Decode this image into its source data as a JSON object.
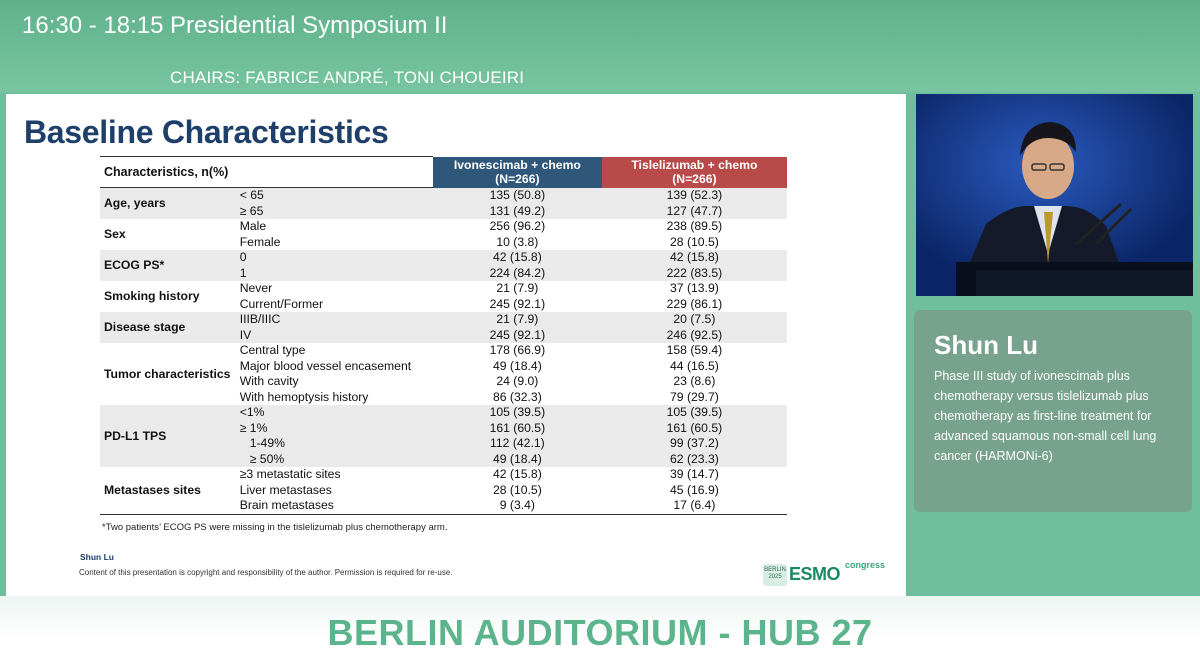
{
  "header": {
    "time": "16:30 - 18:15",
    "title": "Presidential Symposium II",
    "chairs": "CHAIRS: FABRICE ANDRÉ, TONI CHOUEIRI"
  },
  "slide": {
    "title": "Baseline Characteristics",
    "table": {
      "headers": {
        "characteristics": "Characteristics, n(%)",
        "arm1": "Ivonescimab + chemo",
        "arm1_n": "(N=266)",
        "arm2": "Tislelizumab + chemo",
        "arm2_n": "(N=266)"
      },
      "rows": [
        {
          "cat": "Age, years",
          "sub": "< 65",
          "a": "135 (50.8)",
          "b": "139 (52.3)"
        },
        {
          "sub": "≥ 65",
          "a": "131 (49.2)",
          "b": "127 (47.7)"
        },
        {
          "cat": "Sex",
          "sub": "Male",
          "a": "256 (96.2)",
          "b": "238 (89.5)"
        },
        {
          "sub": "Female",
          "a": "10 (3.8)",
          "b": "28 (10.5)"
        },
        {
          "cat": "ECOG PS*",
          "sub": "0",
          "a": "42 (15.8)",
          "b": "42 (15.8)"
        },
        {
          "sub": "1",
          "a": "224 (84.2)",
          "b": "222 (83.5)"
        },
        {
          "cat": "Smoking history",
          "sub": "Never",
          "a": "21 (7.9)",
          "b": "37 (13.9)"
        },
        {
          "sub": "Current/Former",
          "a": "245 (92.1)",
          "b": "229 (86.1)"
        },
        {
          "cat": "Disease stage",
          "sub": "IIIB/IIIC",
          "a": "21 (7.9)",
          "b": "20 (7.5)"
        },
        {
          "sub": "IV",
          "a": "245 (92.1)",
          "b": "246 (92.5)"
        },
        {
          "cat": "Tumor characteristics",
          "sub": "Central type",
          "a": "178 (66.9)",
          "b": "158 (59.4)"
        },
        {
          "sub": "Major blood vessel encasement",
          "a": "49 (18.4)",
          "b": "44 (16.5)"
        },
        {
          "sub": "With cavity",
          "a": "24 (9.0)",
          "b": "23 (8.6)"
        },
        {
          "sub": "With hemoptysis history",
          "a": "86 (32.3)",
          "b": "79 (29.7)"
        },
        {
          "cat": "PD-L1 TPS",
          "sub": "<1%",
          "a": "105 (39.5)",
          "b": "105 (39.5)"
        },
        {
          "sub": "≥ 1%",
          "a": "161 (60.5)",
          "b": "161 (60.5)"
        },
        {
          "sub": "1-49%",
          "a": "112 (42.1)",
          "b": "99 (37.2)"
        },
        {
          "sub": "≥ 50%",
          "a": "49 (18.4)",
          "b": "62 (23.3)"
        },
        {
          "cat": "Metastases sites",
          "sub": "≥3 metastatic sites",
          "a": "42 (15.8)",
          "b": "39 (14.7)"
        },
        {
          "sub": "Liver metastases",
          "a": "28 (10.5)",
          "b": "45 (16.9)"
        },
        {
          "sub": "Brain metastases",
          "a": "9 (3.4)",
          "b": "17 (6.4)"
        }
      ]
    },
    "footnote": "*Two patients’ ECOG PS were missing in the tislelizumab plus chemotherapy arm.",
    "presenter": "Shun Lu",
    "copyright": "Content of this presentation is copyright and responsibility of the author. Permission is required for re-use.",
    "logo": {
      "badge": "BERLIN 2025",
      "brand": "ESMO",
      "suffix": "congress",
      "brand_color": "#1b8a63"
    }
  },
  "speaker": {
    "name": "Shun Lu",
    "description": "Phase III study of ivonescimab plus chemotherapy versus tislelizumab plus chemotherapy as first-line treatment for advanced squamous non-small cell lung cancer (HARMONi-6)"
  },
  "footer": {
    "venue": "BERLIN AUDITORIUM - HUB 27"
  },
  "colors": {
    "accent_green": "#5cb48d",
    "title_blue": "#1d3f6a",
    "arm1_header": "#2f5779",
    "arm2_header": "#b84a4a"
  }
}
